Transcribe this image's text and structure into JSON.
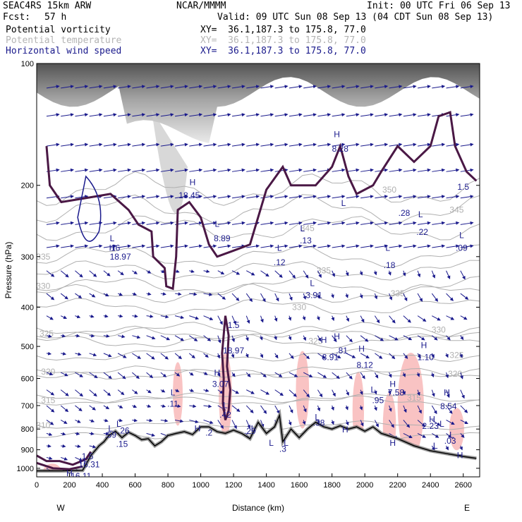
{
  "header": {
    "model": "SEAC4RS 15km ARW",
    "org": "NCAR/MMMM",
    "init": "Init: 00 UTC Fri 06 Sep 13",
    "fcst_label": "Fcst:",
    "fcst_value": "57 h",
    "valid": "Valid: 09 UTC Sun 08 Sep 13 (04 CDT Sun 08 Sep 13)",
    "fields": [
      {
        "name": "Potential vorticity",
        "xy": "XY=  36.1,187.3 to 175.8, 77.0",
        "color": "#000000"
      },
      {
        "name": "Potential temperature",
        "xy": "XY=  36.1,187.3 to 175.8, 77.0",
        "color": "#b4b4b4"
      },
      {
        "name": "Horizontal wind speed",
        "xy": "XY=  36.1,187.3 to 175.8, 77.0",
        "color": "#1a1a8c"
      }
    ]
  },
  "chart_data": {
    "type": "cross-section",
    "xlabel": "Distance (km)",
    "ylabel": "Pressure (hPa)",
    "xlim": [
      0,
      2700
    ],
    "ylim": [
      1050,
      100
    ],
    "y_scale": "log",
    "x_ticks": [
      0,
      200,
      400,
      600,
      800,
      1000,
      1200,
      1400,
      1600,
      1800,
      2000,
      2200,
      2400,
      2600
    ],
    "y_ticks": [
      100,
      200,
      300,
      400,
      500,
      600,
      700,
      800,
      900,
      1000
    ],
    "x_end_labels": {
      "left": "W",
      "right": "E"
    },
    "colors": {
      "pv": "#4a1845",
      "theta": "#b0b0b0",
      "wind": "#1a1a8c",
      "pink": "#f8b8b8"
    },
    "terrain": [
      [
        0,
        1015
      ],
      [
        150,
        1015
      ],
      [
        280,
        1012
      ],
      [
        300,
        980
      ],
      [
        330,
        930
      ],
      [
        360,
        900
      ],
      [
        380,
        880
      ],
      [
        410,
        860
      ],
      [
        440,
        830
      ],
      [
        480,
        810
      ],
      [
        520,
        840
      ],
      [
        560,
        815
      ],
      [
        600,
        830
      ],
      [
        640,
        850
      ],
      [
        680,
        845
      ],
      [
        720,
        880
      ],
      [
        760,
        860
      ],
      [
        800,
        830
      ],
      [
        850,
        820
      ],
      [
        900,
        812
      ],
      [
        950,
        825
      ],
      [
        1000,
        790
      ],
      [
        1050,
        790
      ],
      [
        1100,
        812
      ],
      [
        1150,
        820
      ],
      [
        1200,
        805
      ],
      [
        1250,
        820
      ],
      [
        1300,
        845
      ],
      [
        1350,
        770
      ],
      [
        1400,
        820
      ],
      [
        1450,
        790
      ],
      [
        1480,
        740
      ],
      [
        1500,
        860
      ],
      [
        1550,
        800
      ],
      [
        1600,
        840
      ],
      [
        1650,
        800
      ],
      [
        1700,
        770
      ],
      [
        1750,
        790
      ],
      [
        1800,
        800
      ],
      [
        1850,
        785
      ],
      [
        1900,
        800
      ],
      [
        1950,
        790
      ],
      [
        2000,
        810
      ],
      [
        2050,
        790
      ],
      [
        2100,
        820
      ],
      [
        2200,
        845
      ],
      [
        2300,
        880
      ],
      [
        2400,
        905
      ],
      [
        2500,
        920
      ],
      [
        2600,
        935
      ],
      [
        2680,
        945
      ]
    ],
    "theta_levels": [
      {
        "label": "310",
        "x": 40,
        "p": 783
      },
      {
        "label": "315",
        "x": 70,
        "p": 680
      },
      {
        "label": "320",
        "x": 70,
        "p": 578
      },
      {
        "label": "325",
        "x": 60,
        "p": 465
      },
      {
        "label": "330",
        "x": 40,
        "p": 355
      },
      {
        "label": "335",
        "x": 1750,
        "p": 325
      },
      {
        "label": "330",
        "x": 1600,
        "p": 400
      },
      {
        "label": "335",
        "x": 2200,
        "p": 370
      },
      {
        "label": "325",
        "x": 1700,
        "p": 485
      },
      {
        "label": "320",
        "x": 2550,
        "p": 585
      },
      {
        "label": "315",
        "x": 2300,
        "p": 670
      },
      {
        "label": "330",
        "x": 2450,
        "p": 455
      },
      {
        "label": "325",
        "x": 2560,
        "p": 525
      },
      {
        "label": "345",
        "x": 1650,
        "p": 255
      },
      {
        "label": "350",
        "x": 2150,
        "p": 205
      },
      {
        "label": "345",
        "x": 2560,
        "p": 230
      },
      {
        "label": "335",
        "x": 40,
        "p": 300
      },
      {
        "label": "300",
        "x": 2100,
        "p": 835
      }
    ],
    "pv_contour": "1.5",
    "annotations": [
      {
        "text": "H",
        "x": 1830,
        "p": 152
      },
      {
        "text": "8.28",
        "x": 1850,
        "p": 165
      },
      {
        "text": "H",
        "x": 950,
        "p": 200
      },
      {
        "text": "18.45",
        "x": 930,
        "p": 215
      },
      {
        "text": "L",
        "x": 1870,
        "p": 225
      },
      {
        "text": ".28",
        "x": 2240,
        "p": 238
      },
      {
        "text": "L",
        "x": 2340,
        "p": 240
      },
      {
        "text": ".22",
        "x": 2350,
        "p": 265
      },
      {
        "text": "L",
        "x": 2590,
        "p": 270
      },
      {
        "text": ".09",
        "x": 2590,
        "p": 290
      },
      {
        "text": "L",
        "x": 1100,
        "p": 253
      },
      {
        "text": "8.89",
        "x": 1130,
        "p": 275
      },
      {
        "text": "L",
        "x": 1620,
        "p": 260
      },
      {
        "text": ".13",
        "x": 1640,
        "p": 278
      },
      {
        "text": "L",
        "x": 2140,
        "p": 290
      },
      {
        "text": ".18",
        "x": 2150,
        "p": 320
      },
      {
        "text": "L",
        "x": 1480,
        "p": 290
      },
      {
        "text": ".12",
        "x": 1480,
        "p": 315
      },
      {
        "text": "L",
        "x": 460,
        "p": 275
      },
      {
        "text": "H",
        "x": 460,
        "p": 290
      },
      {
        "text": "16",
        "x": 480,
        "p": 290
      },
      {
        "text": "18.97",
        "x": 510,
        "p": 305
      },
      {
        "text": "L",
        "x": 1680,
        "p": 355
      },
      {
        "text": "3.91",
        "x": 1690,
        "p": 380
      },
      {
        "text": "1.5",
        "x": 1200,
        "p": 450
      },
      {
        "text": "18.97",
        "x": 1200,
        "p": 520
      },
      {
        "text": "H",
        "x": 1750,
        "p": 490
      },
      {
        "text": "H",
        "x": 1830,
        "p": 480
      },
      {
        "text": "8.91",
        "x": 1790,
        "p": 540
      },
      {
        "text": ".81",
        "x": 1860,
        "p": 520
      },
      {
        "text": "H",
        "x": 1980,
        "p": 515
      },
      {
        "text": "8.12",
        "x": 2000,
        "p": 565
      },
      {
        "text": "H",
        "x": 2360,
        "p": 505
      },
      {
        "text": "1.10",
        "x": 2370,
        "p": 540
      },
      {
        "text": "H",
        "x": 1100,
        "p": 590
      },
      {
        "text": "3.07",
        "x": 1120,
        "p": 630
      },
      {
        "text": "H",
        "x": 2170,
        "p": 630
      },
      {
        "text": "7.58",
        "x": 2190,
        "p": 660
      },
      {
        "text": "L",
        "x": 2050,
        "p": 650
      },
      {
        "text": ".95",
        "x": 2080,
        "p": 690
      },
      {
        "text": "H",
        "x": 2500,
        "p": 660
      },
      {
        "text": "8.54",
        "x": 2510,
        "p": 715
      },
      {
        "text": "L",
        "x": 830,
        "p": 660
      },
      {
        "text": ".11",
        "x": 830,
        "p": 705
      },
      {
        "text": "L",
        "x": 1150,
        "p": 710
      },
      {
        "text": ".42",
        "x": 1150,
        "p": 750
      },
      {
        "text": "L",
        "x": 1710,
        "p": 760
      },
      {
        "text": ".38",
        "x": 1720,
        "p": 785
      },
      {
        "text": "H",
        "x": 2410,
        "p": 770
      },
      {
        "text": "2.23",
        "x": 2400,
        "p": 800
      },
      {
        "text": "L",
        "x": 2470,
        "p": 790
      },
      {
        "text": "L",
        "x": 500,
        "p": 790
      },
      {
        "text": "L",
        "x": 450,
        "p": 810
      },
      {
        "text": ".26",
        "x": 530,
        "p": 820
      },
      {
        "text": ".59",
        "x": 450,
        "p": 840
      },
      {
        "text": "H",
        "x": 980,
        "p": 810
      },
      {
        "text": ".2",
        "x": 1050,
        "p": 830
      },
      {
        "text": "L",
        "x": 1320,
        "p": 810
      },
      {
        "text": ".29",
        "x": 1300,
        "p": 822
      },
      {
        "text": "L",
        "x": 2530,
        "p": 840
      },
      {
        "text": ".03",
        "x": 2520,
        "p": 870
      },
      {
        "text": "H",
        "x": 1880,
        "p": 815
      },
      {
        "text": "L",
        "x": 1520,
        "p": 880
      },
      {
        "text": ".3",
        "x": 1500,
        "p": 910
      },
      {
        "text": "L",
        "x": 1430,
        "p": 880
      },
      {
        "text": "H",
        "x": 2170,
        "p": 880
      },
      {
        "text": "L",
        "x": 2430,
        "p": 895
      },
      {
        "text": "H",
        "x": 2580,
        "p": 945
      },
      {
        "text": ".15",
        "x": 520,
        "p": 885
      },
      {
        "text": "1.5",
        "x": 310,
        "p": 950
      },
      {
        "text": "H",
        "x": 280,
        "p": 975
      },
      {
        "text": "16.31",
        "x": 320,
        "p": 995
      },
      {
        "text": "H",
        "x": 200,
        "p": 1045
      },
      {
        "text": "16.11",
        "x": 270,
        "p": 1062
      },
      {
        "text": "1.5",
        "x": 2600,
        "p": 205
      }
    ]
  }
}
